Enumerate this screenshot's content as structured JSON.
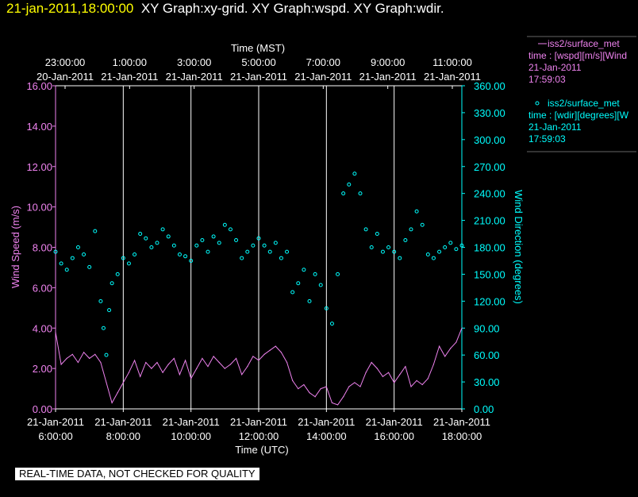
{
  "header": {
    "timestamp": "21-jan-2011,18:00:00",
    "graphs": "XY Graph:xy-grid.  XY Graph:wspd.  XY Graph:wdir."
  },
  "legend": {
    "speed": {
      "name": "iss2/surface_met",
      "expr": "time : [wspd][m/s][Wind",
      "date": "21-Jan-2011",
      "time": "17:59:03"
    },
    "dir": {
      "name": "iss2/surface_met",
      "expr": "time : [wdir][degrees][W",
      "date": "21-Jan-2011",
      "time": "17:59:03"
    }
  },
  "banner": "REAL-TIME DATA, NOT CHECKED FOR QUALITY",
  "colors": {
    "speed": "#ee82ee",
    "dir": "#00ffff",
    "grid": "#ffffff",
    "background": "#000000"
  },
  "chart_data": {
    "type": "line",
    "top_axis": {
      "title": "Time (MST)",
      "ticks": [
        {
          "time": "23:00:00",
          "date": "20-Jan-2011"
        },
        {
          "time": "1:00:00",
          "date": "21-Jan-2011"
        },
        {
          "time": "3:00:00",
          "date": "21-Jan-2011"
        },
        {
          "time": "5:00:00",
          "date": "21-Jan-2011"
        },
        {
          "time": "7:00:00",
          "date": "21-Jan-2011"
        },
        {
          "time": "9:00:00",
          "date": "21-Jan-2011"
        },
        {
          "time": "11:00:00",
          "date": "21-Jan-2011"
        }
      ]
    },
    "bottom_axis": {
      "title": "Time (UTC)",
      "range": [
        "06:00",
        "18:00"
      ],
      "ticks": [
        {
          "time": "6:00:00",
          "date": "21-Jan-2011"
        },
        {
          "time": "8:00:00",
          "date": "21-Jan-2011"
        },
        {
          "time": "10:00:00",
          "date": "21-Jan-2011"
        },
        {
          "time": "12:00:00",
          "date": "21-Jan-2011"
        },
        {
          "time": "14:00:00",
          "date": "21-Jan-2011"
        },
        {
          "time": "16:00:00",
          "date": "21-Jan-2011"
        },
        {
          "time": "18:00:00",
          "date": "21-Jan-2011"
        }
      ]
    },
    "left_axis": {
      "label": "Wind Speed (m/s)",
      "ylim": [
        0,
        16
      ],
      "ticks": [
        "0.00",
        "2.00",
        "4.00",
        "6.00",
        "8.00",
        "10.00",
        "12.00",
        "14.00",
        "16.00"
      ]
    },
    "right_axis": {
      "label": "Wind Direction (degrees)",
      "ylim": [
        0,
        360
      ],
      "ticks": [
        "0.00",
        "30.00",
        "60.00",
        "90.00",
        "120.00",
        "150.00",
        "180.00",
        "210.00",
        "240.00",
        "270.00",
        "300.00",
        "330.00",
        "360.00"
      ]
    },
    "grid": "vertical",
    "series": [
      {
        "name": "iss2/surface_met",
        "style": "line",
        "axis": "left",
        "x": [
          "06:00",
          "06:10",
          "06:20",
          "06:30",
          "06:40",
          "06:50",
          "07:00",
          "07:10",
          "07:20",
          "07:30",
          "07:40",
          "07:50",
          "08:00",
          "08:10",
          "08:20",
          "08:30",
          "08:40",
          "08:50",
          "09:00",
          "09:10",
          "09:20",
          "09:30",
          "09:40",
          "09:50",
          "10:00",
          "10:10",
          "10:20",
          "10:30",
          "10:40",
          "10:50",
          "11:00",
          "11:10",
          "11:20",
          "11:30",
          "11:40",
          "11:50",
          "12:00",
          "12:10",
          "12:20",
          "12:30",
          "12:40",
          "12:50",
          "13:00",
          "13:10",
          "13:20",
          "13:30",
          "13:40",
          "13:50",
          "14:00",
          "14:10",
          "14:20",
          "14:30",
          "14:40",
          "14:50",
          "15:00",
          "15:10",
          "15:20",
          "15:30",
          "15:40",
          "15:50",
          "16:00",
          "16:10",
          "16:20",
          "16:30",
          "16:40",
          "16:50",
          "17:00",
          "17:10",
          "17:20",
          "17:30",
          "17:40",
          "17:50",
          "18:00"
        ],
        "values": [
          3.8,
          2.2,
          2.5,
          2.7,
          2.3,
          2.8,
          2.5,
          2.7,
          2.3,
          1.3,
          0.3,
          0.8,
          1.3,
          1.8,
          2.4,
          1.6,
          2.3,
          2.0,
          2.3,
          1.8,
          2.2,
          2.5,
          1.7,
          2.4,
          1.5,
          2.0,
          2.5,
          2.1,
          2.6,
          2.3,
          2.0,
          2.2,
          2.5,
          1.7,
          2.1,
          2.6,
          2.4,
          2.7,
          2.9,
          3.1,
          2.8,
          2.3,
          1.4,
          1.0,
          1.2,
          0.8,
          0.6,
          1.0,
          1.1,
          0.3,
          0.2,
          0.6,
          1.1,
          1.3,
          1.1,
          1.8,
          2.3,
          2.0,
          1.6,
          1.8,
          1.3,
          1.7,
          2.1,
          1.1,
          1.4,
          1.2,
          1.5,
          2.2,
          3.1,
          2.6,
          3.0,
          3.3,
          4.0
        ]
      },
      {
        "name": "iss2/surface_met",
        "style": "scatter",
        "axis": "right",
        "x": [
          "06:00",
          "06:10",
          "06:20",
          "06:30",
          "06:40",
          "06:50",
          "07:00",
          "07:10",
          "07:20",
          "07:25",
          "07:30",
          "07:35",
          "07:40",
          "07:50",
          "08:00",
          "08:10",
          "08:20",
          "08:30",
          "08:40",
          "08:50",
          "09:00",
          "09:10",
          "09:20",
          "09:30",
          "09:40",
          "09:50",
          "10:00",
          "10:10",
          "10:20",
          "10:30",
          "10:40",
          "10:50",
          "11:00",
          "11:10",
          "11:20",
          "11:30",
          "11:40",
          "11:50",
          "12:00",
          "12:10",
          "12:20",
          "12:30",
          "12:40",
          "12:50",
          "13:00",
          "13:10",
          "13:20",
          "13:30",
          "13:40",
          "13:50",
          "14:00",
          "14:10",
          "14:20",
          "14:30",
          "14:40",
          "14:50",
          "15:00",
          "15:10",
          "15:20",
          "15:30",
          "15:40",
          "15:50",
          "16:00",
          "16:10",
          "16:20",
          "16:30",
          "16:40",
          "16:50",
          "17:00",
          "17:10",
          "17:20",
          "17:30",
          "17:40",
          "17:50",
          "18:00"
        ],
        "values": [
          175,
          162,
          155,
          168,
          180,
          172,
          158,
          198,
          120,
          90,
          60,
          110,
          140,
          150,
          168,
          162,
          172,
          195,
          190,
          180,
          185,
          200,
          192,
          182,
          172,
          170,
          165,
          182,
          188,
          175,
          192,
          185,
          205,
          200,
          188,
          168,
          175,
          182,
          190,
          182,
          175,
          185,
          168,
          175,
          130,
          140,
          155,
          120,
          150,
          138,
          112,
          95,
          150,
          240,
          250,
          262,
          240,
          200,
          180,
          195,
          175,
          180,
          175,
          168,
          188,
          200,
          220,
          205,
          172,
          168,
          175,
          180,
          185,
          178,
          182
        ]
      }
    ]
  }
}
